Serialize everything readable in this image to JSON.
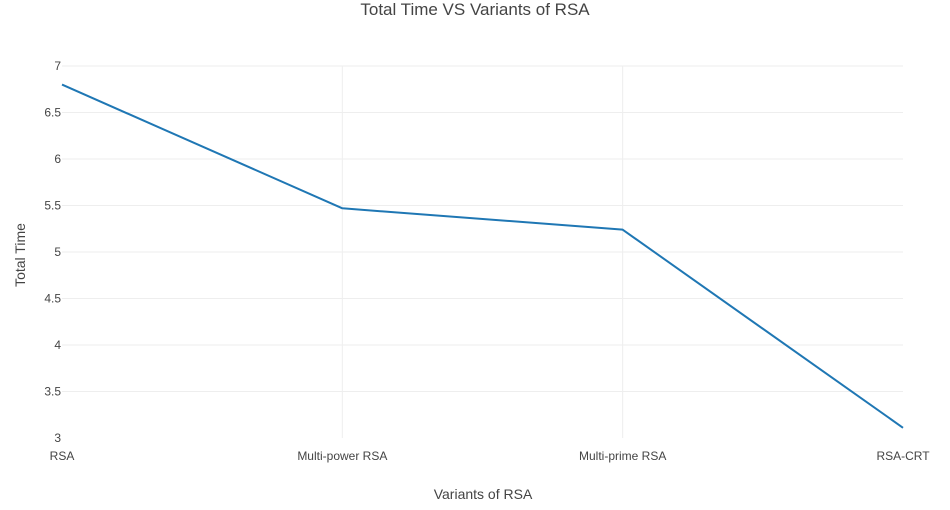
{
  "chart_data": {
    "type": "line",
    "title": "Total Time VS Variants of RSA",
    "xlabel": "Variants of RSA",
    "ylabel": "Total Time",
    "categories": [
      "RSA",
      "Multi-power RSA",
      "Multi-prime RSA",
      "RSA-CRT"
    ],
    "series": [
      {
        "values": [
          6.8,
          5.47,
          5.24,
          3.11
        ]
      }
    ],
    "ylim": [
      3,
      7
    ],
    "yticks": [
      "3",
      "3.5",
      "4",
      "4.5",
      "5",
      "5.5",
      "6",
      "6.5",
      "7"
    ],
    "grid": true,
    "line_color": "#1f77b4"
  }
}
